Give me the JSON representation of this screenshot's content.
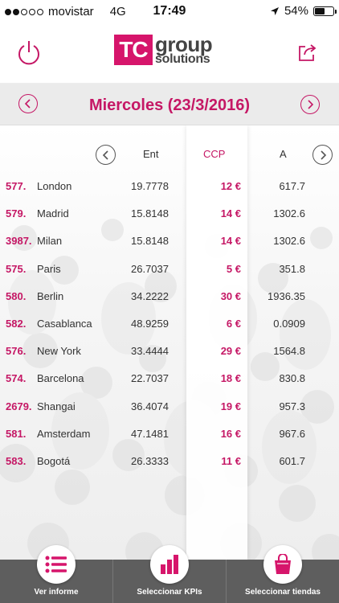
{
  "status_bar": {
    "carrier": "movistar",
    "network": "4G",
    "time": "17:49",
    "battery_text": "54%",
    "battery_level": 0.54,
    "signal_bars": 2
  },
  "header": {
    "logo_box": "TC",
    "logo_line1": "group",
    "logo_line2": "solutions",
    "power_icon": "power-icon",
    "share_icon": "share-icon"
  },
  "date_bar": {
    "title": "Miercoles (23/3/2016)"
  },
  "table": {
    "columns": [
      "Ent",
      "CCP",
      "A"
    ],
    "rows": [
      {
        "code": "577.",
        "city": "London",
        "ent": "19.7778",
        "ccp": "12 €",
        "a": "617.7"
      },
      {
        "code": "579.",
        "city": "Madrid",
        "ent": "15.8148",
        "ccp": "14 €",
        "a": "1302.6"
      },
      {
        "code": "3987.",
        "city": "Milan",
        "ent": "15.8148",
        "ccp": "14 €",
        "a": "1302.6"
      },
      {
        "code": "575.",
        "city": "Paris",
        "ent": "26.7037",
        "ccp": "5 €",
        "a": "351.8"
      },
      {
        "code": "580.",
        "city": "Berlin",
        "ent": "34.2222",
        "ccp": "30 €",
        "a": "1936.35"
      },
      {
        "code": "582.",
        "city": "Casablanca",
        "ent": "48.9259",
        "ccp": "6 €",
        "a": "0.0909"
      },
      {
        "code": "576.",
        "city": "New York",
        "ent": "33.4444",
        "ccp": "29 €",
        "a": "1564.8"
      },
      {
        "code": "574.",
        "city": "Barcelona",
        "ent": "22.7037",
        "ccp": "18 €",
        "a": "830.8"
      },
      {
        "code": "2679.",
        "city": "Shangai",
        "ent": "36.4074",
        "ccp": "19 €",
        "a": "957.3"
      },
      {
        "code": "581.",
        "city": "Amsterdam",
        "ent": "47.1481",
        "ccp": "16 €",
        "a": "967.6"
      },
      {
        "code": "583.",
        "city": "Bogotá",
        "ent": "26.3333",
        "ccp": "11 €",
        "a": "601.7"
      }
    ]
  },
  "bottom_nav": {
    "items": [
      {
        "label": "Ver informe",
        "icon": "list-icon"
      },
      {
        "label": "Seleccionar KPIs",
        "icon": "bar-chart-icon"
      },
      {
        "label": "Seleccionar tiendas",
        "icon": "shopping-bag-icon"
      }
    ]
  },
  "colors": {
    "accent": "#c51765",
    "logo": "#d6156b",
    "nav_bg": "#5e5e5e"
  }
}
